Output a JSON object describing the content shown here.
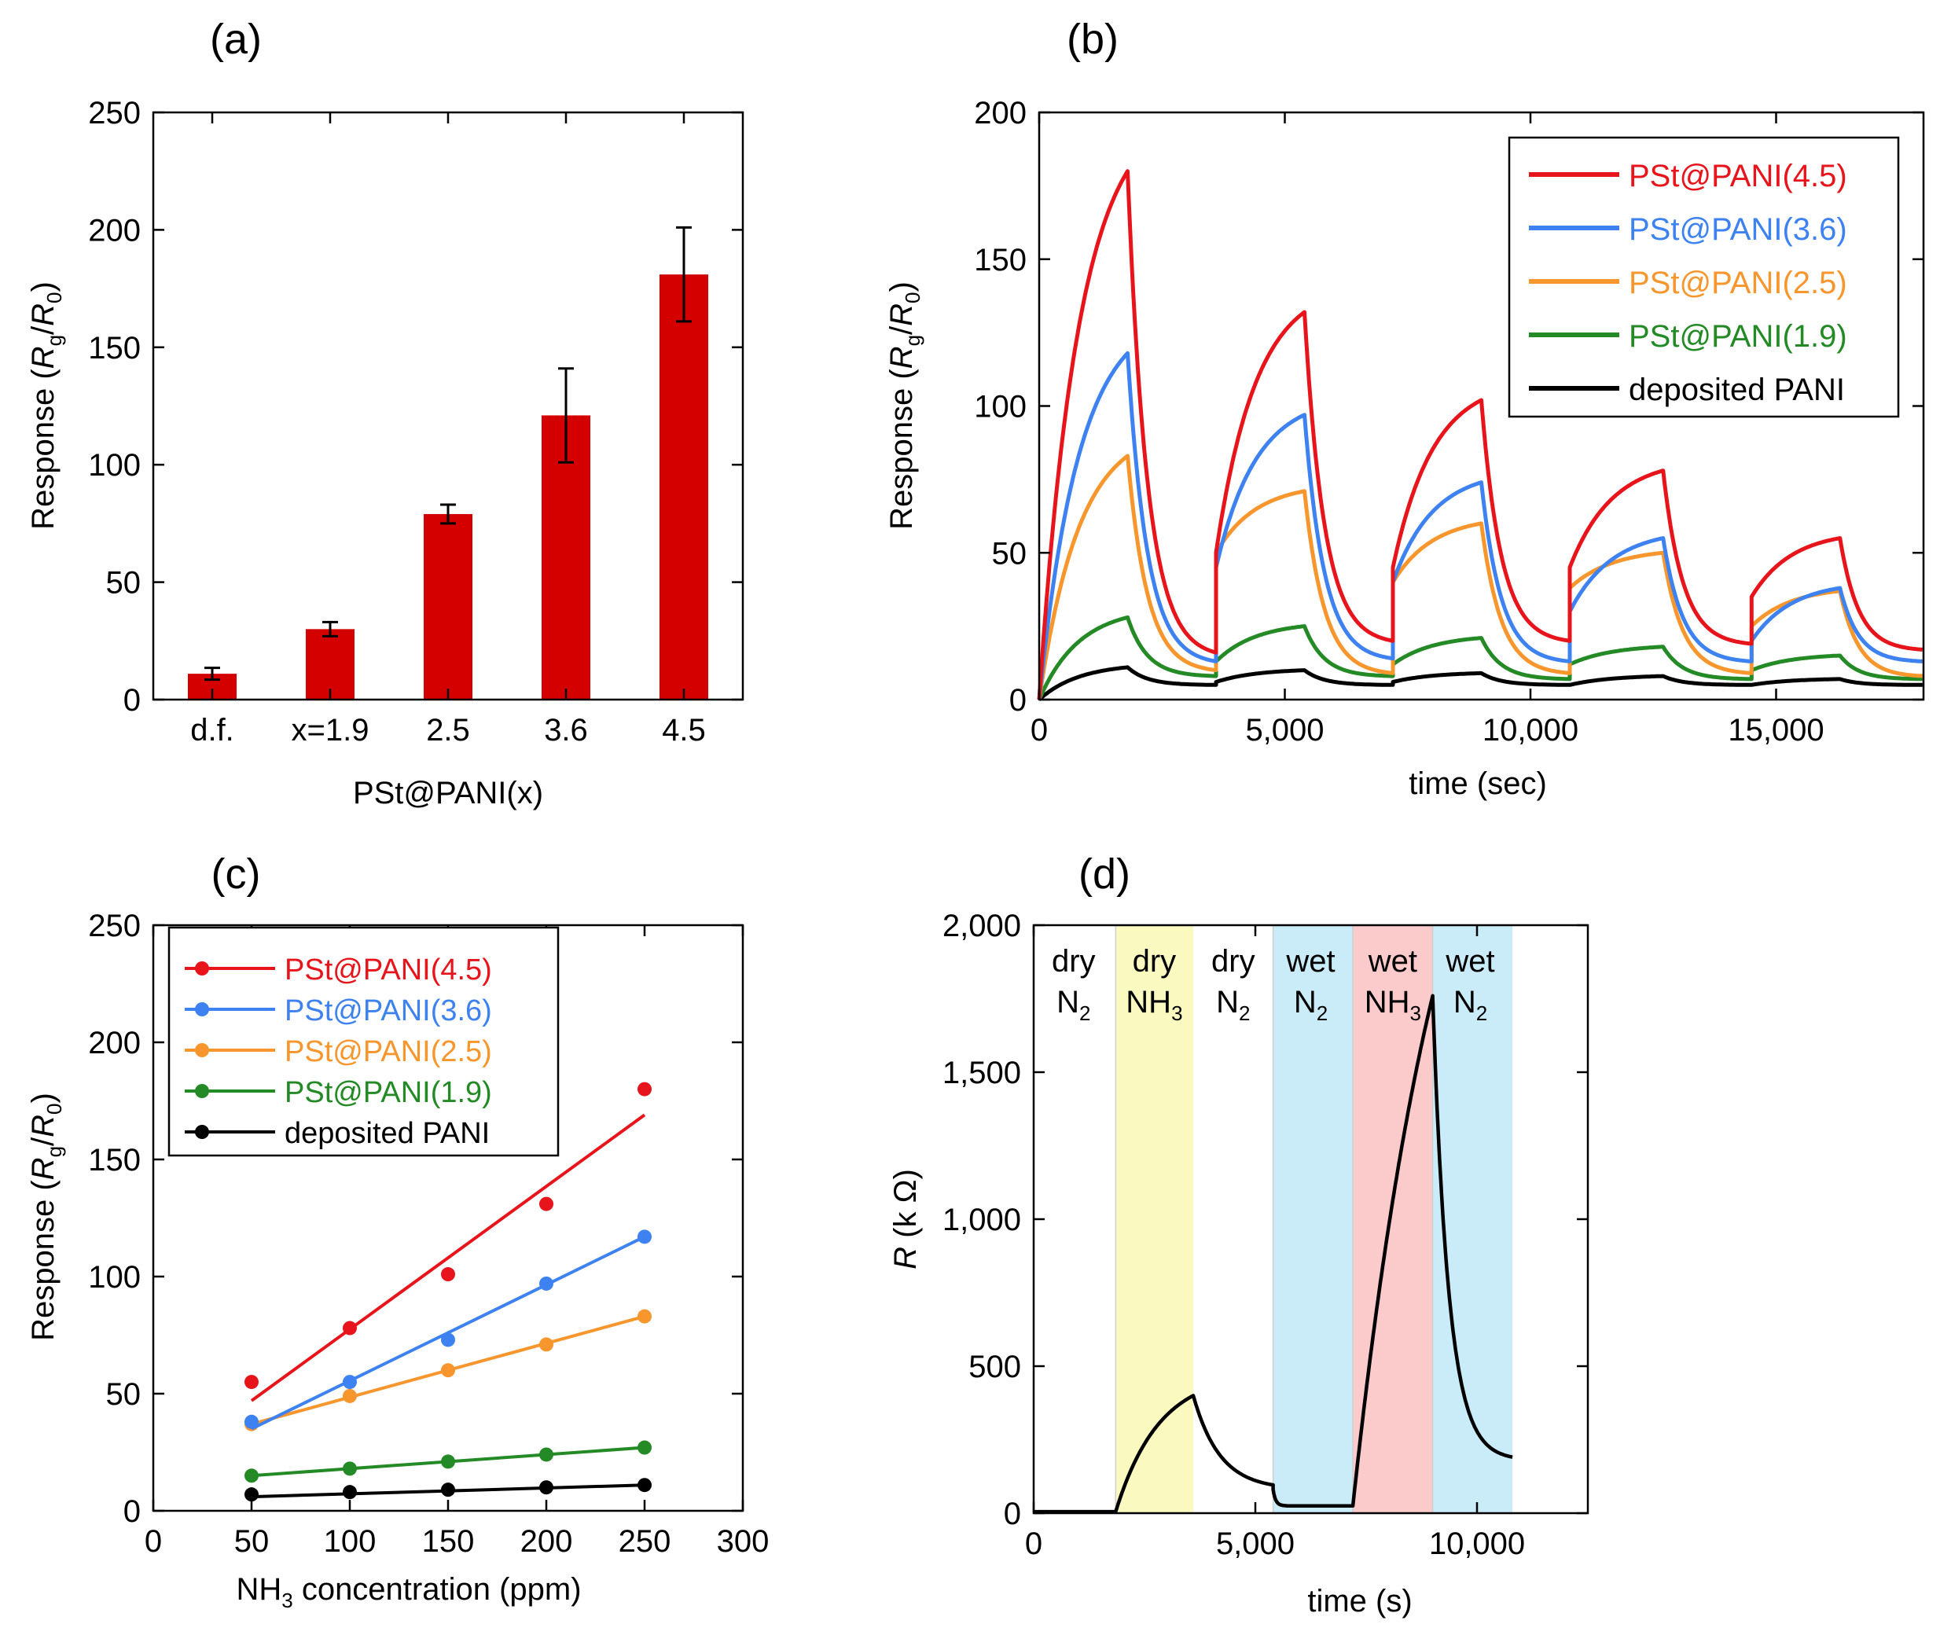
{
  "figure": {
    "panel_labels": [
      "(a)",
      "(b)",
      "(c)",
      "(d)"
    ]
  },
  "colors": {
    "red": "#e8141b",
    "blue": "#3d82f0",
    "orange": "#f7962d",
    "green": "#238a25",
    "black": "#000000",
    "bar": "#d40000",
    "yellow_band": "#fafac0",
    "blue_band": "#c9ecf8",
    "red_band": "#fbcaca"
  },
  "chart_data": [
    {
      "panel": "(a)",
      "type": "bar",
      "title": "(a)",
      "xlabel": "PSt@PANI(x)",
      "ylabel": {
        "prefix": "Response (",
        "r1": "R",
        "s1": "g",
        "slash": "/",
        "r2": "R",
        "s2": "0",
        "suffix": ")"
      },
      "categories": [
        "d.f.",
        "x=1.9",
        "2.5",
        "3.6",
        "4.5"
      ],
      "values": [
        11,
        30,
        79,
        121,
        181
      ],
      "errors": [
        2.5,
        3,
        4,
        20,
        20
      ],
      "ylim": [
        0,
        250
      ],
      "yticks": [
        0,
        50,
        100,
        150,
        200,
        250
      ],
      "yticklabels": [
        "0",
        "50",
        "100",
        "150",
        "200",
        "250"
      ]
    },
    {
      "panel": "(b)",
      "type": "line",
      "title": "(b)",
      "xlabel": "time (sec)",
      "ylabel": {
        "prefix": "Response (",
        "r1": "R",
        "s1": "g",
        "slash": "/",
        "r2": "R",
        "s2": "0",
        "suffix": ")"
      },
      "xlim": [
        0,
        18000
      ],
      "ylim": [
        0,
        200
      ],
      "xticks": [
        0,
        5000,
        10000,
        15000
      ],
      "xticklabels": [
        "0",
        "5,000",
        "10,000",
        "15,000"
      ],
      "yticks": [
        0,
        50,
        100,
        150,
        200
      ],
      "yticklabels": [
        "0",
        "50",
        "100",
        "150",
        "200"
      ],
      "cycles": [
        {
          "on": 0,
          "off": 1800,
          "end": 3600
        },
        {
          "on": 3600,
          "off": 5400,
          "end": 7200
        },
        {
          "on": 7200,
          "off": 9000,
          "end": 10800
        },
        {
          "on": 10800,
          "off": 12700,
          "end": 14500
        },
        {
          "on": 14500,
          "off": 16300,
          "end": 18000
        }
      ],
      "legend_position": "top-right",
      "series": [
        {
          "name": "PSt@PANI(4.5)",
          "color": "#e8141b",
          "peaks": [
            180,
            132,
            102,
            78,
            55
          ],
          "troughs": [
            16,
            20,
            20,
            19,
            17
          ],
          "starts": [
            0,
            50,
            45,
            45,
            35
          ]
        },
        {
          "name": "PSt@PANI(3.6)",
          "color": "#3d82f0",
          "peaks": [
            118,
            97,
            74,
            55,
            38
          ],
          "troughs": [
            13,
            14,
            13,
            13,
            13
          ],
          "starts": [
            0,
            45,
            40,
            30,
            20
          ]
        },
        {
          "name": "PSt@PANI(2.5)",
          "color": "#f7962d",
          "peaks": [
            83,
            71,
            60,
            50,
            37
          ],
          "troughs": [
            10,
            9,
            9,
            9,
            8
          ],
          "starts": [
            0,
            50,
            40,
            38,
            25
          ]
        },
        {
          "name": "PSt@PANI(1.9)",
          "color": "#238a25",
          "peaks": [
            28,
            25,
            21,
            18,
            15
          ],
          "troughs": [
            8,
            8,
            7,
            7,
            7
          ],
          "starts": [
            0,
            13,
            12,
            12,
            10
          ]
        },
        {
          "name": "deposited PANI",
          "color": "#000000",
          "peaks": [
            11,
            10,
            9,
            8,
            7
          ],
          "troughs": [
            5,
            5,
            5,
            5,
            5
          ],
          "starts": [
            0,
            6,
            6,
            5,
            5
          ]
        }
      ]
    },
    {
      "panel": "(c)",
      "type": "scatter",
      "title": "(c)",
      "xlabel": {
        "pre": "NH",
        "sub": "3",
        "post": " concentration (ppm)"
      },
      "ylabel": {
        "prefix": "Response (",
        "r1": "R",
        "s1": "g",
        "slash": "/",
        "r2": "R",
        "s2": "0",
        "suffix": ")"
      },
      "xlim": [
        0,
        300
      ],
      "ylim": [
        0,
        250
      ],
      "xticks": [
        0,
        50,
        100,
        150,
        200,
        250,
        300
      ],
      "xticklabels": [
        "0",
        "50",
        "100",
        "150",
        "200",
        "250",
        "300"
      ],
      "yticks": [
        0,
        50,
        100,
        150,
        200,
        250
      ],
      "yticklabels": [
        "0",
        "50",
        "100",
        "150",
        "200",
        "250"
      ],
      "x": [
        50,
        100,
        150,
        200,
        250
      ],
      "legend_position": "top-left",
      "series": [
        {
          "name": "PSt@PANI(4.5)",
          "color": "#e8141b",
          "values": [
            55,
            78,
            101,
            131,
            180
          ],
          "fit": [
            47,
            169
          ]
        },
        {
          "name": "PSt@PANI(3.6)",
          "color": "#3d82f0",
          "values": [
            38,
            55,
            73,
            97,
            117
          ],
          "fit": [
            35,
            117
          ]
        },
        {
          "name": "PSt@PANI(2.5)",
          "color": "#f7962d",
          "values": [
            37,
            49,
            60,
            71,
            83
          ],
          "fit": [
            37,
            83
          ]
        },
        {
          "name": "PSt@PANI(1.9)",
          "color": "#238a25",
          "values": [
            15,
            18,
            21,
            24,
            27
          ],
          "fit": [
            15,
            27
          ]
        },
        {
          "name": "deposited PANI",
          "color": "#000000",
          "values": [
            7,
            8,
            9,
            10,
            11
          ],
          "fit": [
            6,
            11
          ]
        }
      ]
    },
    {
      "panel": "(d)",
      "type": "line",
      "title": "(d)",
      "xlabel": "time (s)",
      "ylabel": {
        "r": "R",
        "unit": " (k Ω)"
      },
      "xlim": [
        0,
        12500
      ],
      "ylim": [
        0,
        2000
      ],
      "xticks": [
        0,
        5000,
        10000
      ],
      "xticklabels": [
        "0",
        "5,000",
        "10,000"
      ],
      "yticks": [
        0,
        500,
        1000,
        1500,
        2000
      ],
      "yticklabels": [
        "0",
        "500",
        "1,000",
        "1,500",
        "2,000"
      ],
      "bands": [
        {
          "x0": 1850,
          "x1": 3600,
          "color": "#fafac0"
        },
        {
          "x0": 5400,
          "x1": 7200,
          "color": "#c9ecf8"
        },
        {
          "x0": 7200,
          "x1": 9000,
          "color": "#fbcaca"
        },
        {
          "x0": 9000,
          "x1": 10800,
          "color": "#c9ecf8"
        }
      ],
      "region_labels": [
        {
          "line1": "dry",
          "pre": "N",
          "sub": "2",
          "x_center": 900
        },
        {
          "line1": "dry",
          "pre": "NH",
          "sub": "3",
          "x_center": 2720
        },
        {
          "line1": "dry",
          "pre": "N",
          "sub": "2",
          "x_center": 4500
        },
        {
          "line1": "wet",
          "pre": "N",
          "sub": "2",
          "x_center": 6250
        },
        {
          "line1": "wet",
          "pre": "NH",
          "sub": "3",
          "x_center": 8100
        },
        {
          "line1": "wet",
          "pre": "N",
          "sub": "2",
          "x_center": 9850
        }
      ],
      "segments": [
        {
          "phase": "flat",
          "t0": 0,
          "t1": 1850,
          "v": 5
        },
        {
          "phase": "rise",
          "t0": 1850,
          "t1": 3600,
          "v0": 5,
          "v1": 400,
          "k": 1.8
        },
        {
          "phase": "decay",
          "t0": 3600,
          "t1": 5400,
          "v0": 400,
          "vinf": 80,
          "k": 3
        },
        {
          "phase": "drop",
          "t0": 5400,
          "t1": 5700,
          "v0": 80,
          "vinf": 25,
          "k": 5
        },
        {
          "phase": "flat",
          "t0": 5700,
          "t1": 7200,
          "v": 25
        },
        {
          "phase": "rise",
          "t0": 7200,
          "t1": 9000,
          "v0": 25,
          "v1": 1760,
          "k": 0.8
        },
        {
          "phase": "decay",
          "t0": 9000,
          "t1": 10800,
          "v0": 1760,
          "vinf": 180,
          "k": 5
        }
      ]
    }
  ]
}
